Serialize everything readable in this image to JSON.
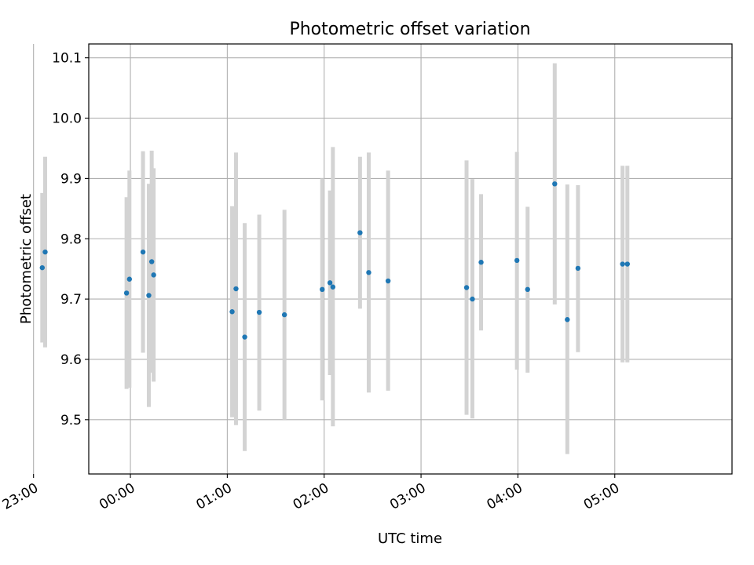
{
  "chart_data": {
    "type": "scatter",
    "title": "Photometric offset variation",
    "xlabel": "UTC time",
    "ylabel": "Photometric offset",
    "x_unit": "hours (relative to 00:00 UTC)",
    "xlim": [
      -0.43,
      6.21
    ],
    "ylim": [
      9.41,
      10.123
    ],
    "xticks": [
      {
        "value": -1,
        "label": "23:00"
      },
      {
        "value": 0,
        "label": "00:00"
      },
      {
        "value": 1,
        "label": "01:00"
      },
      {
        "value": 2,
        "label": "02:00"
      },
      {
        "value": 3,
        "label": "03:00"
      },
      {
        "value": 4,
        "label": "04:00"
      },
      {
        "value": 5,
        "label": "05:00"
      }
    ],
    "yticks": [
      {
        "value": 9.5,
        "label": "9.5"
      },
      {
        "value": 9.6,
        "label": "9.6"
      },
      {
        "value": 9.7,
        "label": "9.7"
      },
      {
        "value": 9.8,
        "label": "9.8"
      },
      {
        "value": 9.9,
        "label": "9.9"
      },
      {
        "value": 10.0,
        "label": "10.0"
      },
      {
        "value": 10.1,
        "label": "10.1"
      }
    ],
    "grid": true,
    "marker_color": "#1f77b4",
    "errorbar_color": "#d3d3d3",
    "points": [
      {
        "x": -0.91,
        "y": 9.752,
        "ylow": 9.628,
        "yhigh": 9.876
      },
      {
        "x": -0.88,
        "y": 9.778,
        "ylow": 9.62,
        "yhigh": 9.936
      },
      {
        "x": -0.04,
        "y": 9.71,
        "ylow": 9.551,
        "yhigh": 9.869
      },
      {
        "x": -0.01,
        "y": 9.733,
        "ylow": 9.553,
        "yhigh": 9.913
      },
      {
        "x": 0.13,
        "y": 9.778,
        "ylow": 9.611,
        "yhigh": 9.945
      },
      {
        "x": 0.19,
        "y": 9.706,
        "ylow": 9.521,
        "yhigh": 9.891
      },
      {
        "x": 0.22,
        "y": 9.762,
        "ylow": 9.578,
        "yhigh": 9.946
      },
      {
        "x": 0.24,
        "y": 9.74,
        "ylow": 9.563,
        "yhigh": 9.917
      },
      {
        "x": 1.05,
        "y": 9.679,
        "ylow": 9.504,
        "yhigh": 9.854
      },
      {
        "x": 1.09,
        "y": 9.717,
        "ylow": 9.491,
        "yhigh": 9.943
      },
      {
        "x": 1.18,
        "y": 9.637,
        "ylow": 9.448,
        "yhigh": 9.826
      },
      {
        "x": 1.33,
        "y": 9.678,
        "ylow": 9.515,
        "yhigh": 9.84
      },
      {
        "x": 1.59,
        "y": 9.674,
        "ylow": 9.5,
        "yhigh": 9.848
      },
      {
        "x": 1.98,
        "y": 9.716,
        "ylow": 9.532,
        "yhigh": 9.9
      },
      {
        "x": 2.06,
        "y": 9.727,
        "ylow": 9.574,
        "yhigh": 9.88
      },
      {
        "x": 2.09,
        "y": 9.72,
        "ylow": 9.489,
        "yhigh": 9.952
      },
      {
        "x": 2.37,
        "y": 9.81,
        "ylow": 9.684,
        "yhigh": 9.936
      },
      {
        "x": 2.46,
        "y": 9.744,
        "ylow": 9.545,
        "yhigh": 9.943
      },
      {
        "x": 2.66,
        "y": 9.73,
        "ylow": 9.548,
        "yhigh": 9.913
      },
      {
        "x": 3.47,
        "y": 9.719,
        "ylow": 9.508,
        "yhigh": 9.93
      },
      {
        "x": 3.53,
        "y": 9.7,
        "ylow": 9.502,
        "yhigh": 9.899
      },
      {
        "x": 3.62,
        "y": 9.761,
        "ylow": 9.648,
        "yhigh": 9.874
      },
      {
        "x": 3.99,
        "y": 9.764,
        "ylow": 9.583,
        "yhigh": 9.944
      },
      {
        "x": 4.1,
        "y": 9.716,
        "ylow": 9.578,
        "yhigh": 9.853
      },
      {
        "x": 4.38,
        "y": 9.891,
        "ylow": 9.691,
        "yhigh": 10.091
      },
      {
        "x": 4.51,
        "y": 9.666,
        "ylow": 9.443,
        "yhigh": 9.89
      },
      {
        "x": 4.62,
        "y": 9.751,
        "ylow": 9.612,
        "yhigh": 9.889
      },
      {
        "x": 5.08,
        "y": 9.758,
        "ylow": 9.595,
        "yhigh": 9.921
      },
      {
        "x": 5.13,
        "y": 9.758,
        "ylow": 9.595,
        "yhigh": 9.921
      }
    ]
  }
}
